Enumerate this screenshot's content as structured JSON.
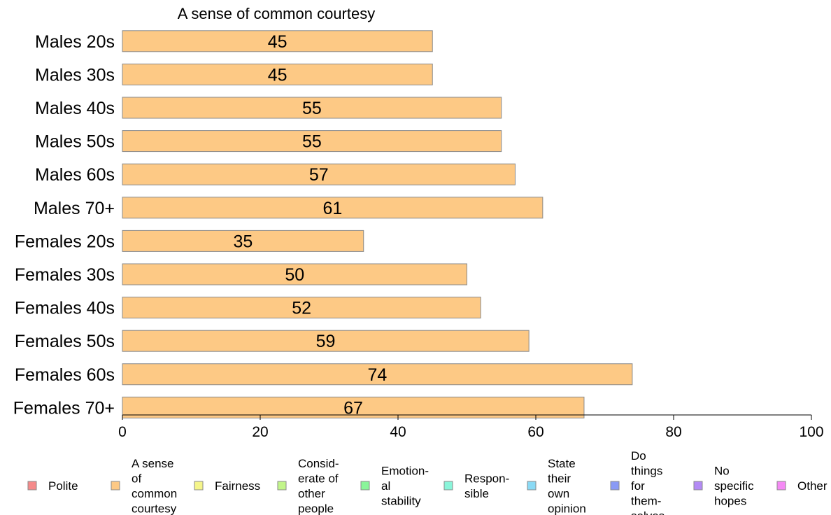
{
  "chart_data": {
    "type": "bar",
    "orientation": "horizontal",
    "title": "A sense of common courtesy",
    "categories": [
      "Males 20s",
      "Males 30s",
      "Males 40s",
      "Males 50s",
      "Males 60s",
      "Males 70+",
      "Females 20s",
      "Females 30s",
      "Females 40s",
      "Females 50s",
      "Females 60s",
      "Females 70+"
    ],
    "values": [
      45,
      45,
      55,
      55,
      57,
      61,
      35,
      50,
      52,
      59,
      74,
      67
    ],
    "xlim": [
      0,
      100
    ],
    "xticks": [
      "0",
      "20",
      "40",
      "60",
      "80",
      "100"
    ],
    "bar_color": "#fdc985",
    "legend_position": "bottom",
    "legend": [
      {
        "label": "Polite",
        "lines": [
          "Polite"
        ],
        "color": "#f58a8a"
      },
      {
        "label": "A sense of common courtesy",
        "lines": [
          "A sense",
          "of",
          "common",
          "courtesy"
        ],
        "color": "#fdc985"
      },
      {
        "label": "Fairness",
        "lines": [
          "Fairness"
        ],
        "color": "#f5f58a"
      },
      {
        "label": "Considerate of other people",
        "lines": [
          "Consid-",
          "erate of",
          "other",
          "people"
        ],
        "color": "#c2f58a"
      },
      {
        "label": "Emotional stability",
        "lines": [
          "Emotion-",
          "al",
          "stability"
        ],
        "color": "#8af59a"
      },
      {
        "label": "Responsible",
        "lines": [
          "Respon-",
          "sible"
        ],
        "color": "#8af5da"
      },
      {
        "label": "State their own opinion",
        "lines": [
          "State",
          "their",
          "own",
          "opinion"
        ],
        "color": "#8adaf5"
      },
      {
        "label": "Do things for themselves",
        "lines": [
          "Do",
          "things",
          "for",
          "them-",
          "selves"
        ],
        "color": "#8a9af5"
      },
      {
        "label": "No specific hopes",
        "lines": [
          "No",
          "specific",
          "hopes"
        ],
        "color": "#b38af5"
      },
      {
        "label": "Other",
        "lines": [
          "Other"
        ],
        "color": "#f58af5"
      }
    ]
  }
}
